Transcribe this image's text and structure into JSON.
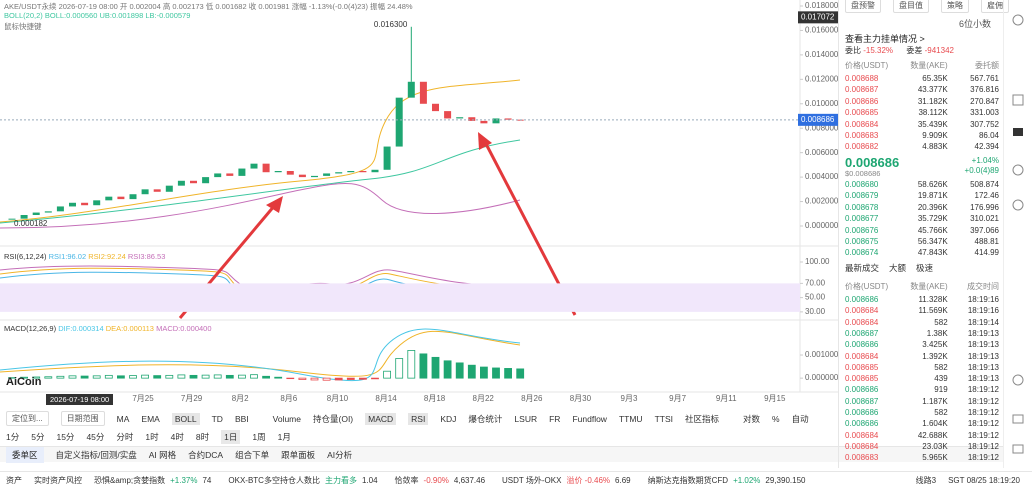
{
  "header": {
    "symbol_info": "AKE/USDT永续 2026-07-19 08:00 开 0.002004 高 0.002173 低 0.001682 收 0.001981 涨幅 -1.13%(-0.0(4)23) 振幅 24.48%",
    "boll_info": "BOLL(20,2) BOLL:0.000560 UB:0.001898 LB:-0.000579",
    "hint": "鼠标快捷键"
  },
  "chart": {
    "type": "candlestick",
    "ylim": [
      0,
      0.018
    ],
    "yticks": [
      {
        "value": 0.018,
        "label": "0.018000"
      },
      {
        "value": 0.016,
        "label": "0.016000"
      },
      {
        "value": 0.014,
        "label": "0.014000"
      },
      {
        "value": 0.012,
        "label": "0.012000"
      },
      {
        "value": 0.01,
        "label": "0.010000"
      },
      {
        "value": 0.008,
        "label": "0.008000"
      },
      {
        "value": 0.006,
        "label": "0.006000"
      },
      {
        "value": 0.004,
        "label": "0.004000"
      },
      {
        "value": 0.002,
        "label": "0.002000"
      },
      {
        "value": 0,
        "label": "0.000000"
      }
    ],
    "closes": [
      0.0006,
      0.0009,
      0.0011,
      0.0012,
      0.0016,
      0.0019,
      0.0017,
      0.0021,
      0.0024,
      0.0022,
      0.0026,
      0.003,
      0.0028,
      0.0033,
      0.0037,
      0.0035,
      0.004,
      0.0043,
      0.0041,
      0.0047,
      0.0051,
      0.0044,
      0.0045,
      0.0042,
      0.004,
      0.0041,
      0.0043,
      0.0044,
      0.0045,
      0.0044,
      0.0046,
      0.0065,
      0.0105,
      0.0118,
      0.01,
      0.0094,
      0.0088,
      0.0089,
      0.0086,
      0.0084,
      0.0088,
      0.0087,
      0.008686
    ],
    "current_price": 0.008686,
    "top_price": 0.017072,
    "high_label": {
      "value": 0.0163,
      "label": "0.016300"
    },
    "low_label": 0.000182,
    "crosshair_date": "2026-07-19 08:00",
    "dates": [
      "7月25",
      "7月29",
      "8月2",
      "8月6",
      "8月10",
      "8月14",
      "8月18",
      "8月22",
      "8月26",
      "8月30",
      "9月3",
      "9月7",
      "9月11",
      "9月15"
    ],
    "watermark": "AiCoin"
  },
  "rsi": {
    "title": "RSI(6,12,24)",
    "rsi1": "RSI1:96.02",
    "rsi2": "RSI2:92.24",
    "rsi3": "RSI3:86.53",
    "ylim": [
      20,
      100
    ],
    "band": [
      30,
      70
    ],
    "yticks": [
      {
        "value": 100,
        "label": "100.00"
      },
      {
        "value": 70,
        "label": "70.00"
      },
      {
        "value": 50,
        "label": "50.00"
      },
      {
        "value": 30,
        "label": "30.00"
      }
    ]
  },
  "macd": {
    "title": "MACD(12,26,9)",
    "dif": "DIF:0.000314",
    "dea": "DEA:0.000113",
    "macd": "MACD:0.000400",
    "ylim": [
      -0.0006,
      0.0023
    ],
    "yticks": [
      {
        "value": 0.001,
        "label": "0.001000"
      },
      {
        "value": 0,
        "label": "0.000000"
      }
    ],
    "histogram": [
      2e-05,
      4e-05,
      5e-05,
      6e-05,
      8e-05,
      0.0001,
      9e-05,
      0.0001,
      0.00012,
      0.0001,
      0.00011,
      0.00013,
      0.00011,
      0.00012,
      0.00014,
      0.00012,
      0.00013,
      0.00014,
      0.00012,
      0.00013,
      0.00015,
      8e-05,
      4e-05,
      -2e-05,
      -6e-05,
      -8e-05,
      -9e-05,
      -8e-05,
      -6e-05,
      -5e-05,
      -3e-05,
      0.0003,
      0.00085,
      0.0012,
      0.00105,
      0.0009,
      0.00075,
      0.00066,
      0.00056,
      0.00048,
      0.00044,
      0.00042,
      0.0004
    ]
  },
  "toolbar": {
    "locate": "定位到...",
    "date_range": "日期范围",
    "main_indicators": [
      "MA",
      "EMA",
      "BOLL",
      "TD",
      "BBI"
    ],
    "sub_indicators": [
      "Volume",
      "持仓量(OI)",
      "MACD",
      "RSI",
      "KDJ",
      "爆仓统计",
      "LSUR",
      "FR",
      "Fundflow",
      "TTMU",
      "TTSI",
      "社区指标"
    ],
    "right": [
      "对数",
      "%",
      "自动"
    ]
  },
  "periods": [
    "1分",
    "5分",
    "15分",
    "45分",
    "分时",
    "1时",
    "4时",
    "8时",
    "1日",
    "1周",
    "1月"
  ],
  "tabs": [
    "委单区",
    "自定义指标/回测/实盘",
    "AI 网格",
    "合约DCA",
    "组合下单",
    "跟单面板",
    "AI分析"
  ],
  "status_bar": {
    "assets": "资产",
    "risk": "实时资产风控",
    "items": [
      [
        "恐惧&amp;贪婪指数",
        "+1.37%",
        "74"
      ],
      [
        "OKX-BTC多空持仓人数比",
        "主力看多",
        "1.04"
      ],
      [
        "恰敛率",
        "-0.90%",
        "4,637.46"
      ],
      [
        "USDT 场外-OKX",
        "溢价 -0.46%",
        "6.69"
      ],
      [
        "纳斯达克指数期货CFD",
        "+1.02%",
        "29,390.150"
      ]
    ],
    "line": "线路3",
    "clock": "SGT 08/25 18:19:20"
  },
  "side_panel": {
    "buttons": [
      "盘预警",
      "盘目值",
      "策略",
      "雇佣"
    ],
    "decimals": "6位小数",
    "depth_link": "查看主力挂单情况 >",
    "ratio_label": "委比",
    "ratio": "-15.32%",
    "diff_label": "委差",
    "diff": "-941342",
    "book_header": [
      "价格(USDT)",
      "数量(AKE)",
      "委托额"
    ],
    "asks": [
      [
        "0.008688",
        "65.35K",
        "567.761"
      ],
      [
        "0.008687",
        "43.377K",
        "376.816"
      ],
      [
        "0.008686",
        "31.182K",
        "270.847"
      ],
      [
        "0.008685",
        "38.112K",
        "331.003"
      ],
      [
        "0.008684",
        "35.439K",
        "307.752"
      ],
      [
        "0.008683",
        "9.909K",
        "86.04"
      ],
      [
        "0.008682",
        "4.883K",
        "42.394"
      ]
    ],
    "last_price": "0.008686",
    "last_usd": "$0.008686",
    "change_pct": "+1.04%",
    "change_abs": "+0.0(4)89",
    "bids": [
      [
        "0.008680",
        "58.626K",
        "508.874"
      ],
      [
        "0.008679",
        "19.871K",
        "172.46"
      ],
      [
        "0.008678",
        "20.396K",
        "176.996"
      ],
      [
        "0.008677",
        "35.729K",
        "310.021"
      ],
      [
        "0.008676",
        "45.766K",
        "397.066"
      ],
      [
        "0.008675",
        "56.347K",
        "488.81"
      ],
      [
        "0.008674",
        "47.843K",
        "414.99"
      ]
    ],
    "trade_tabs": [
      "最新成交",
      "大额",
      "极速"
    ],
    "trade_header": [
      "价格(USDT)",
      "数量(AKE)",
      "成交时间"
    ],
    "trades": [
      {
        "price": "0.008686",
        "qty": "11.328K",
        "time": "18:19:16",
        "side": "buy"
      },
      {
        "price": "0.008684",
        "qty": "11.569K",
        "time": "18:19:16",
        "side": "sell"
      },
      {
        "price": "0.008684",
        "qty": "582",
        "time": "18:19:14",
        "side": "sell"
      },
      {
        "price": "0.008687",
        "qty": "1.38K",
        "time": "18:19:13",
        "side": "buy"
      },
      {
        "price": "0.008686",
        "qty": "3.425K",
        "time": "18:19:13",
        "side": "buy"
      },
      {
        "price": "0.008684",
        "qty": "1.392K",
        "time": "18:19:13",
        "side": "sell"
      },
      {
        "price": "0.008685",
        "qty": "582",
        "time": "18:19:13",
        "side": "sell"
      },
      {
        "price": "0.008685",
        "qty": "439",
        "time": "18:19:13",
        "side": "sell"
      },
      {
        "price": "0.008686",
        "qty": "919",
        "time": "18:19:12",
        "side": "buy"
      },
      {
        "price": "0.008687",
        "qty": "1.187K",
        "time": "18:19:12",
        "side": "buy"
      },
      {
        "price": "0.008686",
        "qty": "582",
        "time": "18:19:12",
        "side": "buy"
      },
      {
        "price": "0.008686",
        "qty": "1.604K",
        "time": "18:19:12",
        "side": "buy"
      },
      {
        "price": "0.008684",
        "qty": "42.688K",
        "time": "18:19:12",
        "side": "sell"
      },
      {
        "price": "0.008684",
        "qty": "23.03K",
        "time": "18:19:12",
        "side": "sell"
      },
      {
        "price": "0.008683",
        "qty": "5.965K",
        "time": "18:19:12",
        "side": "sell"
      }
    ]
  }
}
